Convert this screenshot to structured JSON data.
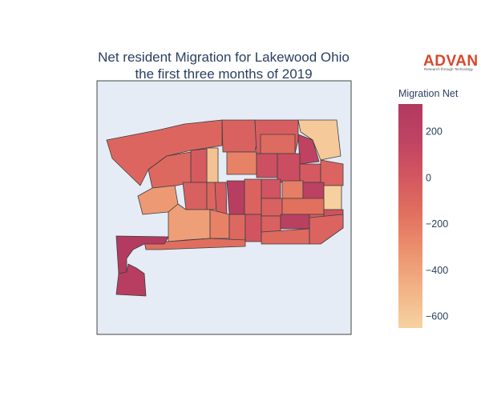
{
  "title_lines": [
    "Net resident Migration for Lakewood Ohio",
    "the first three months of 2019"
  ],
  "logo": {
    "name": "ADVAN",
    "tagline": "Research through Technology"
  },
  "colorbar": {
    "title": "Migration Net",
    "ticks": [
      "200",
      "0",
      "−200",
      "−400",
      "−600"
    ],
    "tick_values": [
      200,
      0,
      -200,
      -400,
      -600
    ],
    "range": [
      -650,
      320
    ],
    "colorscale": [
      "#f6d2a1",
      "#f2b486",
      "#ec9470",
      "#e2725f",
      "#d45860",
      "#c04363",
      "#b13a60"
    ]
  },
  "map": {
    "background": "#e5ecf6",
    "regions": [
      {
        "id": "north-west-strip",
        "value": -90
      },
      {
        "id": "north-mid-a",
        "value": -60
      },
      {
        "id": "north-mid-b",
        "value": -40
      },
      {
        "id": "north-mid-c",
        "value": -120
      },
      {
        "id": "north-east-corner",
        "value": -600
      },
      {
        "id": "north-east-b",
        "value": 170
      },
      {
        "id": "narrow-north",
        "value": -560
      },
      {
        "id": "mid-a",
        "value": -20
      },
      {
        "id": "mid-b",
        "value": -240
      },
      {
        "id": "mid-c",
        "value": 60
      },
      {
        "id": "mid-d",
        "value": 80
      },
      {
        "id": "mid-e",
        "value": -10
      },
      {
        "id": "mid-f",
        "value": -80
      },
      {
        "id": "west-mid",
        "value": -100
      },
      {
        "id": "west-small",
        "value": -350
      },
      {
        "id": "center-a",
        "value": -50
      },
      {
        "id": "center-b",
        "value": -90
      },
      {
        "id": "center-c",
        "value": -30
      },
      {
        "id": "center-dark",
        "value": 250
      },
      {
        "id": "center-d",
        "value": -70
      },
      {
        "id": "center-e",
        "value": 30
      },
      {
        "id": "center-f",
        "value": -60
      },
      {
        "id": "east-a",
        "value": -220
      },
      {
        "id": "east-dark",
        "value": 200
      },
      {
        "id": "east-pale",
        "value": -640
      },
      {
        "id": "east-b",
        "value": -150
      },
      {
        "id": "east-c",
        "value": 50
      },
      {
        "id": "southwest-light",
        "value": -380
      },
      {
        "id": "south-a",
        "value": -240
      },
      {
        "id": "south-b",
        "value": -100
      },
      {
        "id": "south-c",
        "value": 20
      },
      {
        "id": "south-d",
        "value": -60
      },
      {
        "id": "south-dark",
        "value": 220
      },
      {
        "id": "south-e",
        "value": -40
      },
      {
        "id": "south-f",
        "value": -110
      },
      {
        "id": "south-strip",
        "value": -140
      },
      {
        "id": "south-east",
        "value": -80
      },
      {
        "id": "peninsula-west",
        "value": 300
      },
      {
        "id": "peninsula-south",
        "value": 260
      }
    ]
  }
}
